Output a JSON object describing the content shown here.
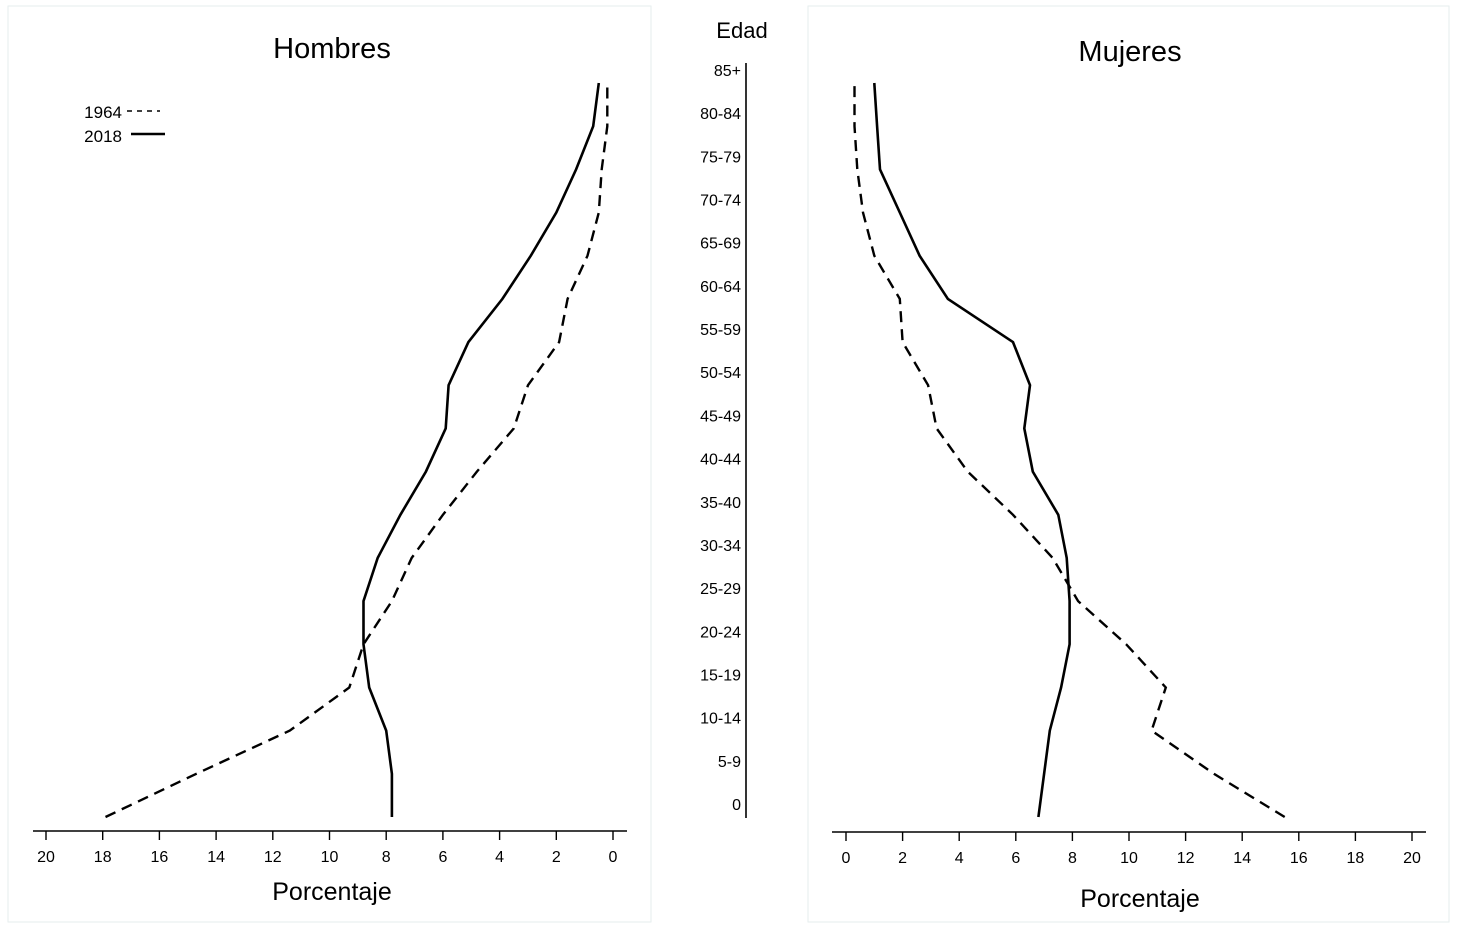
{
  "chart_data": [
    {
      "type": "line",
      "panel": "left",
      "title": "Hombres",
      "xlabel": "Porcentaje",
      "xlim": [
        0,
        20
      ],
      "x_reversed": true,
      "x_ticks": [
        "20",
        "18",
        "16",
        "14",
        "12",
        "10",
        "8",
        "6",
        "4",
        "2",
        "0"
      ],
      "ylabel": "Edad",
      "categories": [
        "0",
        "5-9",
        "10-14",
        "15-19",
        "20-24",
        "25-29",
        "30-34",
        "35-40",
        "40-44",
        "45-49",
        "50-54",
        "55-59",
        "60-64",
        "65-69",
        "70-74",
        "75-79",
        "80-84",
        "85+"
      ],
      "legend": {
        "position": "top-left",
        "entries": [
          {
            "label": "1964",
            "style": "dashed"
          },
          {
            "label": "2018",
            "style": "solid"
          }
        ]
      },
      "series": [
        {
          "name": "1964",
          "style": "dashed",
          "values": [
            17.9,
            14.7,
            11.4,
            9.3,
            8.8,
            7.8,
            7.1,
            6.0,
            4.8,
            3.5,
            3.0,
            1.9,
            1.6,
            0.9,
            0.5,
            0.4,
            0.2,
            0.2
          ]
        },
        {
          "name": "2018",
          "style": "solid",
          "values": [
            7.8,
            7.8,
            8.0,
            8.6,
            8.8,
            8.8,
            8.3,
            7.5,
            6.6,
            5.9,
            5.8,
            5.1,
            3.9,
            2.9,
            2.0,
            1.3,
            0.7,
            0.5
          ]
        }
      ]
    },
    {
      "type": "line",
      "panel": "right",
      "title": "Mujeres",
      "xlabel": "Porcentaje",
      "xlim": [
        0,
        20
      ],
      "x_reversed": false,
      "x_ticks": [
        "0",
        "2",
        "4",
        "6",
        "8",
        "10",
        "12",
        "14",
        "16",
        "18",
        "20"
      ],
      "categories": [
        "0",
        "5-9",
        "10-14",
        "15-19",
        "20-24",
        "25-29",
        "30-34",
        "35-40",
        "40-44",
        "45-49",
        "50-54",
        "55-59",
        "60-64",
        "65-69",
        "70-74",
        "75-79",
        "80-84",
        "85+"
      ],
      "series": [
        {
          "name": "1964",
          "style": "dashed",
          "values": [
            15.5,
            13.0,
            10.8,
            11.3,
            9.9,
            8.2,
            7.3,
            5.9,
            4.3,
            3.2,
            2.9,
            2.0,
            1.9,
            1.0,
            0.6,
            0.4,
            0.3,
            0.3
          ]
        },
        {
          "name": "2018",
          "style": "solid",
          "values": [
            6.8,
            7.0,
            7.2,
            7.6,
            7.9,
            7.9,
            7.8,
            7.5,
            6.6,
            6.3,
            6.5,
            5.9,
            3.6,
            2.6,
            1.9,
            1.2,
            1.1,
            1.0
          ]
        }
      ]
    }
  ]
}
